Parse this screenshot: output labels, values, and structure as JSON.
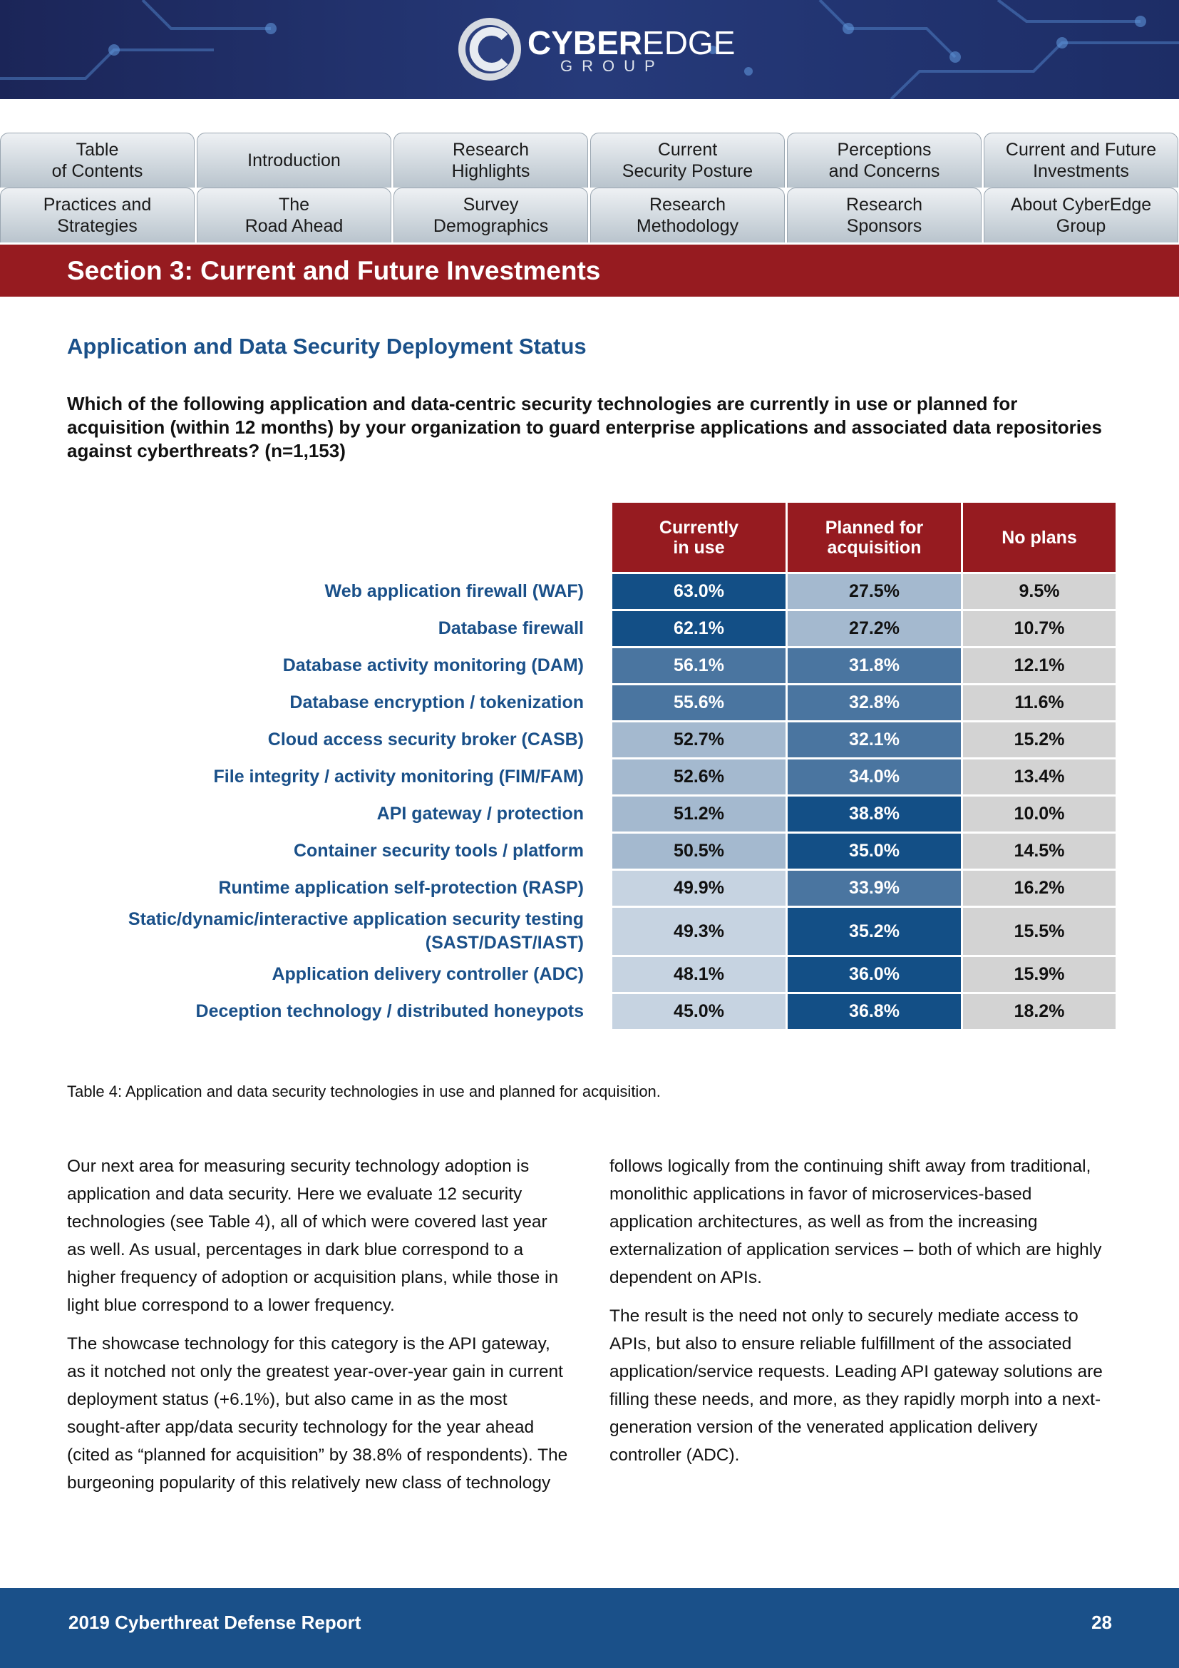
{
  "header": {
    "logo_main": "CYBER",
    "logo_accent": "EDGE",
    "logo_sub": "GROUP"
  },
  "nav": [
    [
      "Table",
      "of Contents"
    ],
    [
      "Introduction"
    ],
    [
      "Research",
      "Highlights"
    ],
    [
      "Current",
      "Security Posture"
    ],
    [
      "Perceptions",
      "and Concerns"
    ],
    [
      "Current and Future",
      "Investments"
    ],
    [
      "Practices and",
      "Strategies"
    ],
    [
      "The",
      "Road Ahead"
    ],
    [
      "Survey",
      "Demographics"
    ],
    [
      "Research",
      "Methodology"
    ],
    [
      "Research",
      "Sponsors"
    ],
    [
      "About CyberEdge",
      "Group"
    ]
  ],
  "section_title": "Section 3: Current and Future Investments",
  "heading": "Application and Data Security Deployment Status",
  "question": "Which of the following application and data-centric security technologies are currently in use or planned for acquisition (within 12 months) by your organization to guard enterprise applications and associated data repositories against cyberthreats? (n=1,153)",
  "table": {
    "columns": [
      [
        "Currently",
        "in use"
      ],
      [
        "Planned for",
        "acquisition"
      ],
      [
        "No plans"
      ]
    ],
    "rows": [
      {
        "label": "Web application firewall (WAF)",
        "cells": [
          "63.0%",
          "27.5%",
          "9.5%"
        ],
        "colors": [
          "#134f86",
          "#a4b9cf",
          "#d3d3d3"
        ]
      },
      {
        "label": "Database firewall",
        "cells": [
          "62.1%",
          "27.2%",
          "10.7%"
        ],
        "colors": [
          "#134f86",
          "#a4b9cf",
          "#d3d3d3"
        ]
      },
      {
        "label": "Database activity monitoring (DAM)",
        "cells": [
          "56.1%",
          "31.8%",
          "12.1%"
        ],
        "colors": [
          "#4a75a0",
          "#4a75a0",
          "#d3d3d3"
        ]
      },
      {
        "label": "Database encryption / tokenization",
        "cells": [
          "55.6%",
          "32.8%",
          "11.6%"
        ],
        "colors": [
          "#4a75a0",
          "#4a75a0",
          "#d3d3d3"
        ]
      },
      {
        "label": "Cloud access security broker (CASB)",
        "cells": [
          "52.7%",
          "32.1%",
          "15.2%"
        ],
        "colors": [
          "#a4b9cf",
          "#4a75a0",
          "#d3d3d3"
        ]
      },
      {
        "label": "File integrity / activity monitoring (FIM/FAM)",
        "cells": [
          "52.6%",
          "34.0%",
          "13.4%"
        ],
        "colors": [
          "#a4b9cf",
          "#4a75a0",
          "#d3d3d3"
        ]
      },
      {
        "label": "API gateway / protection",
        "cells": [
          "51.2%",
          "38.8%",
          "10.0%"
        ],
        "colors": [
          "#a4b9cf",
          "#134f86",
          "#d3d3d3"
        ]
      },
      {
        "label": "Container security tools / platform",
        "cells": [
          "50.5%",
          "35.0%",
          "14.5%"
        ],
        "colors": [
          "#a4b9cf",
          "#134f86",
          "#d3d3d3"
        ]
      },
      {
        "label": "Runtime application self-protection (RASP)",
        "cells": [
          "49.9%",
          "33.9%",
          "16.2%"
        ],
        "colors": [
          "#c6d3e1",
          "#4a75a0",
          "#d3d3d3"
        ]
      },
      {
        "label": "Static/dynamic/interactive application security testing (SAST/DAST/IAST)",
        "cells": [
          "49.3%",
          "35.2%",
          "15.5%"
        ],
        "colors": [
          "#c6d3e1",
          "#134f86",
          "#d3d3d3"
        ]
      },
      {
        "label": "Application delivery controller (ADC)",
        "cells": [
          "48.1%",
          "36.0%",
          "15.9%"
        ],
        "colors": [
          "#c6d3e1",
          "#134f86",
          "#d3d3d3"
        ]
      },
      {
        "label": "Deception technology / distributed honeypots",
        "cells": [
          "45.0%",
          "36.8%",
          "18.2%"
        ],
        "colors": [
          "#c6d3e1",
          "#134f86",
          "#d3d3d3"
        ]
      }
    ]
  },
  "caption": "Table 4: Application and data security technologies in use and planned for acquisition.",
  "paragraphs": [
    "Our next area for measuring security technology adoption is application and data security. Here we evaluate 12 security technologies (see Table 4), all of which were covered last year as well. As usual, percentages in dark blue correspond to a higher frequency of adoption or acquisition plans, while those in light blue correspond to a lower frequency.",
    "The showcase technology for this category is the API gateway, as it notched not only the greatest year-over-year gain in current deployment status (+6.1%), but also came in as the most sought-after app/data security technology for the year ahead (cited as “planned for acquisition” by 38.8% of respondents). The burgeoning popularity of this relatively new class of technology follows logically from the continuing shift away from traditional, monolithic applications in favor of microservices-based application architectures, as well as from the increasing externalization of application services – both of which are highly dependent on APIs.",
    "The result is the need not only to securely mediate access to APIs, but also to ensure reliable fulfillment of the associated application/service requests. Leading API gateway solutions are filling these needs, and more, as they rapidly morph into a next-generation version of the venerated application delivery controller (ADC)."
  ],
  "footer": {
    "title": "2019 Cyberthreat Defense Report",
    "page": "28"
  }
}
